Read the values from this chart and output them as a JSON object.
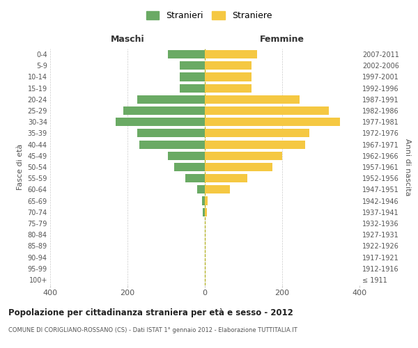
{
  "age_groups": [
    "100+",
    "95-99",
    "90-94",
    "85-89",
    "80-84",
    "75-79",
    "70-74",
    "65-69",
    "60-64",
    "55-59",
    "50-54",
    "45-49",
    "40-44",
    "35-39",
    "30-34",
    "25-29",
    "20-24",
    "15-19",
    "10-14",
    "5-9",
    "0-4"
  ],
  "birth_years": [
    "≤ 1911",
    "1912-1916",
    "1917-1921",
    "1922-1926",
    "1927-1931",
    "1932-1936",
    "1937-1941",
    "1942-1946",
    "1947-1951",
    "1952-1956",
    "1957-1961",
    "1962-1966",
    "1967-1971",
    "1972-1976",
    "1977-1981",
    "1982-1986",
    "1987-1991",
    "1992-1996",
    "1997-2001",
    "2002-2006",
    "2007-2011"
  ],
  "males": [
    0,
    0,
    0,
    0,
    0,
    0,
    5,
    8,
    20,
    50,
    80,
    95,
    170,
    175,
    230,
    210,
    175,
    65,
    65,
    65,
    95
  ],
  "females": [
    0,
    0,
    0,
    0,
    0,
    0,
    5,
    8,
    65,
    110,
    175,
    200,
    260,
    270,
    350,
    320,
    245,
    120,
    120,
    120,
    135
  ],
  "color_males": "#6aaa64",
  "color_females": "#f5c842",
  "title": "Popolazione per cittadinanza straniera per età e sesso - 2012",
  "subtitle": "COMUNE DI CORIGLIANO-ROSSANO (CS) - Dati ISTAT 1° gennaio 2012 - Elaborazione TUTTITALIA.IT",
  "legend_males": "Stranieri",
  "legend_females": "Straniere",
  "xlabel_left": "Maschi",
  "xlabel_right": "Femmine",
  "ylabel_left": "Fasce di età",
  "ylabel_right": "Anni di nascita",
  "xlim": 400,
  "background_color": "#ffffff",
  "grid_color": "#cccccc"
}
